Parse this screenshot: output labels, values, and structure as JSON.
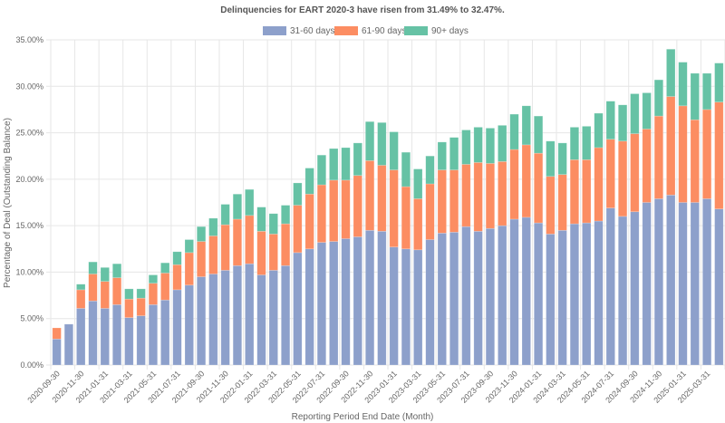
{
  "chart_data": {
    "type": "bar",
    "stacked": true,
    "title": "Delinquencies for EART 2020-3 have risen from 31.49% to 32.47%.",
    "xlabel": "Reporting Period End Date (Month)",
    "ylabel": "Percentage of Deal (Outstanding Balance)",
    "ylim": [
      0,
      35
    ],
    "yticks": [
      "0.00%",
      "5.00%",
      "10.00%",
      "15.00%",
      "20.00%",
      "25.00%",
      "30.00%",
      "35.00%"
    ],
    "ytick_values": [
      0,
      5,
      10,
      15,
      20,
      25,
      30,
      35
    ],
    "grid": true,
    "legend_position": "top-center",
    "categories": [
      "2020-09-30",
      "2020-10-31",
      "2020-11-30",
      "2020-12-31",
      "2021-01-31",
      "2021-02-28",
      "2021-03-31",
      "2021-04-30",
      "2021-05-31",
      "2021-06-30",
      "2021-07-31",
      "2021-08-31",
      "2021-09-30",
      "2021-10-31",
      "2021-11-30",
      "2021-12-31",
      "2022-01-31",
      "2022-02-28",
      "2022-03-31",
      "2022-04-30",
      "2022-05-31",
      "2022-06-30",
      "2022-07-31",
      "2022-08-31",
      "2022-09-30",
      "2022-10-31",
      "2022-11-30",
      "2022-12-31",
      "2023-01-31",
      "2023-02-28",
      "2023-03-31",
      "2023-04-30",
      "2023-05-31",
      "2023-06-30",
      "2023-07-31",
      "2023-08-31",
      "2023-09-30",
      "2023-10-31",
      "2023-11-30",
      "2023-12-31",
      "2024-01-31",
      "2024-02-29",
      "2024-03-31",
      "2024-04-30",
      "2024-05-31",
      "2024-06-30",
      "2024-07-31",
      "2024-08-31",
      "2024-09-30",
      "2024-10-31",
      "2024-11-30",
      "2024-12-31",
      "2025-01-31",
      "2025-02-28",
      "2025-03-31",
      "2025-04-30"
    ],
    "xtick_labels_shown": [
      "2020-09-30",
      "2020-11-30",
      "2021-01-31",
      "2021-03-31",
      "2021-05-31",
      "2021-07-31",
      "2021-09-30",
      "2021-11-30",
      "2022-01-31",
      "2022-03-31",
      "2022-05-31",
      "2022-07-31",
      "2022-09-30",
      "2022-11-30",
      "2023-01-31",
      "2023-03-31",
      "2023-05-31",
      "2023-07-31",
      "2023-09-30",
      "2023-11-30",
      "2024-01-31",
      "2024-03-31",
      "2024-05-31",
      "2024-07-31",
      "2024-09-30",
      "2024-11-30",
      "2025-01-31",
      "2025-03-31"
    ],
    "series": [
      {
        "name": "31-60 days",
        "color": "#8da0cb",
        "values": [
          2.8,
          4.4,
          6.1,
          6.9,
          6.1,
          6.5,
          5.1,
          5.3,
          6.5,
          7.0,
          8.1,
          8.6,
          9.5,
          9.8,
          10.2,
          10.7,
          10.9,
          9.7,
          10.2,
          10.7,
          12.1,
          12.5,
          13.2,
          13.3,
          13.6,
          13.8,
          14.5,
          14.4,
          12.7,
          12.5,
          12.4,
          13.5,
          14.2,
          14.3,
          14.9,
          14.4,
          14.7,
          15.0,
          15.7,
          15.9,
          15.3,
          14.1,
          14.5,
          15.2,
          15.3,
          15.5,
          16.9,
          16.0,
          16.5,
          17.5,
          17.9,
          18.3,
          17.5,
          17.5,
          17.9,
          16.8
        ]
      },
      {
        "name": "61-90 days",
        "color": "#fc8d62",
        "values": [
          1.2,
          0.0,
          2.0,
          2.9,
          2.9,
          2.9,
          2.0,
          1.9,
          2.3,
          2.9,
          2.7,
          3.5,
          3.8,
          4.1,
          4.9,
          5.0,
          5.2,
          4.7,
          3.9,
          4.5,
          5.1,
          5.9,
          6.2,
          6.6,
          6.3,
          6.6,
          7.5,
          7.1,
          8.3,
          6.7,
          5.5,
          6.0,
          6.8,
          6.7,
          6.7,
          7.4,
          7.0,
          6.9,
          7.5,
          7.8,
          7.5,
          6.2,
          6.0,
          6.9,
          6.8,
          7.9,
          7.4,
          8.1,
          8.4,
          7.9,
          8.9,
          10.6,
          10.4,
          8.9,
          9.6,
          11.5
        ]
      },
      {
        "name": "90+ days",
        "color": "#66c2a5",
        "values": [
          0.0,
          0.0,
          0.6,
          1.3,
          1.5,
          1.5,
          1.1,
          1.0,
          0.9,
          1.1,
          1.4,
          1.4,
          1.6,
          1.9,
          2.2,
          2.7,
          2.8,
          2.6,
          2.2,
          2.0,
          2.4,
          2.8,
          3.2,
          3.4,
          3.5,
          3.5,
          4.2,
          4.6,
          4.1,
          3.7,
          3.2,
          3.0,
          3.0,
          3.5,
          3.7,
          3.8,
          3.8,
          3.9,
          3.8,
          4.2,
          4.0,
          3.8,
          3.4,
          3.5,
          3.6,
          3.7,
          4.1,
          3.9,
          4.3,
          3.9,
          3.9,
          5.1,
          4.7,
          5.0,
          3.9,
          4.2
        ]
      }
    ]
  }
}
